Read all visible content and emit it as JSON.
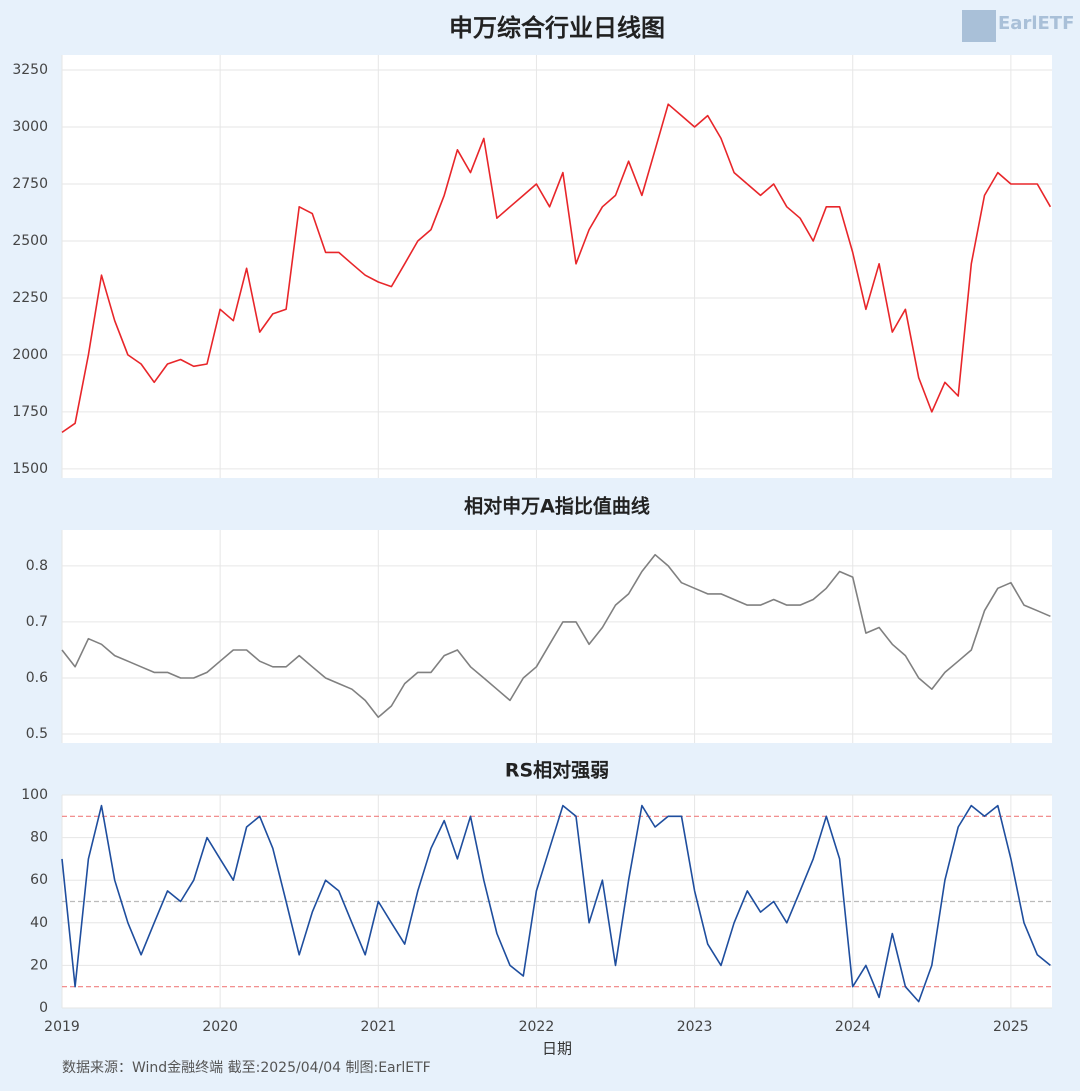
{
  "logo": "EarlETF",
  "source": "数据来源：Wind金融终端 截至:2025/04/04 制图:EarlETF",
  "chart_data": [
    {
      "type": "line",
      "title": "申万综合行业日线图",
      "x": [
        2019,
        2019.083,
        2019.167,
        2019.25,
        2019.333,
        2019.417,
        2019.5,
        2019.583,
        2019.667,
        2019.75,
        2019.833,
        2019.917,
        2020,
        2020.083,
        2020.167,
        2020.25,
        2020.333,
        2020.417,
        2020.5,
        2020.583,
        2020.667,
        2020.75,
        2020.833,
        2020.917,
        2021,
        2021.083,
        2021.167,
        2021.25,
        2021.333,
        2021.417,
        2021.5,
        2021.583,
        2021.667,
        2021.75,
        2021.833,
        2021.917,
        2022,
        2022.083,
        2022.167,
        2022.25,
        2022.333,
        2022.417,
        2022.5,
        2022.583,
        2022.667,
        2022.75,
        2022.833,
        2022.917,
        2023,
        2023.083,
        2023.167,
        2023.25,
        2023.333,
        2023.417,
        2023.5,
        2023.583,
        2023.667,
        2023.75,
        2023.833,
        2023.917,
        2024,
        2024.083,
        2024.167,
        2024.25,
        2024.333,
        2024.417,
        2024.5,
        2024.583,
        2024.667,
        2024.75,
        2024.833,
        2024.917,
        2025,
        2025.083,
        2025.167,
        2025.25
      ],
      "series": [
        {
          "name": "申万综合",
          "color": "#e8262a",
          "values": [
            1660,
            1700,
            2000,
            2350,
            2150,
            2000,
            1960,
            1880,
            1960,
            1980,
            1950,
            1960,
            2200,
            2150,
            2380,
            2100,
            2180,
            2200,
            2650,
            2620,
            2450,
            2450,
            2400,
            2350,
            2320,
            2300,
            2400,
            2500,
            2550,
            2700,
            2900,
            2800,
            2950,
            2600,
            2650,
            2700,
            2750,
            2650,
            2800,
            2400,
            2550,
            2650,
            2700,
            2850,
            2700,
            2900,
            3100,
            3050,
            3000,
            3050,
            2950,
            2800,
            2750,
            2700,
            2750,
            2650,
            2600,
            2500,
            2650,
            2650,
            2450,
            2200,
            2400,
            2100,
            2200,
            1900,
            1750,
            1880,
            1820,
            2400,
            2700,
            2800,
            2750,
            2750,
            2750,
            2650
          ]
        }
      ],
      "xlim": [
        2019,
        2025.26
      ],
      "xticks": [
        2019,
        2020,
        2021,
        2022,
        2023,
        2024,
        2025
      ],
      "ylim": [
        1460,
        3316
      ],
      "yticks": [
        1500,
        1750,
        2000,
        2250,
        2500,
        2750,
        3000,
        3250
      ],
      "grid": true
    },
    {
      "type": "line",
      "title": "相对申万A指比值曲线",
      "x": [
        2019,
        2019.083,
        2019.167,
        2019.25,
        2019.333,
        2019.417,
        2019.5,
        2019.583,
        2019.667,
        2019.75,
        2019.833,
        2019.917,
        2020,
        2020.083,
        2020.167,
        2020.25,
        2020.333,
        2020.417,
        2020.5,
        2020.583,
        2020.667,
        2020.75,
        2020.833,
        2020.917,
        2021,
        2021.083,
        2021.167,
        2021.25,
        2021.333,
        2021.417,
        2021.5,
        2021.583,
        2021.667,
        2021.75,
        2021.833,
        2021.917,
        2022,
        2022.083,
        2022.167,
        2022.25,
        2022.333,
        2022.417,
        2022.5,
        2022.583,
        2022.667,
        2022.75,
        2022.833,
        2022.917,
        2023,
        2023.083,
        2023.167,
        2023.25,
        2023.333,
        2023.417,
        2023.5,
        2023.583,
        2023.667,
        2023.75,
        2023.833,
        2023.917,
        2024,
        2024.083,
        2024.167,
        2024.25,
        2024.333,
        2024.417,
        2024.5,
        2024.583,
        2024.667,
        2024.75,
        2024.833,
        2024.917,
        2025,
        2025.083,
        2025.167,
        2025.25
      ],
      "series": [
        {
          "name": "比值",
          "color": "#808080",
          "values": [
            0.65,
            0.62,
            0.67,
            0.66,
            0.64,
            0.63,
            0.62,
            0.61,
            0.61,
            0.6,
            0.6,
            0.61,
            0.63,
            0.65,
            0.65,
            0.63,
            0.62,
            0.62,
            0.64,
            0.62,
            0.6,
            0.59,
            0.58,
            0.56,
            0.53,
            0.55,
            0.59,
            0.61,
            0.61,
            0.64,
            0.65,
            0.62,
            0.6,
            0.58,
            0.56,
            0.6,
            0.62,
            0.66,
            0.7,
            0.7,
            0.66,
            0.69,
            0.73,
            0.75,
            0.79,
            0.82,
            0.8,
            0.77,
            0.76,
            0.75,
            0.75,
            0.74,
            0.73,
            0.73,
            0.74,
            0.73,
            0.73,
            0.74,
            0.76,
            0.79,
            0.78,
            0.68,
            0.69,
            0.66,
            0.64,
            0.6,
            0.58,
            0.61,
            0.63,
            0.65,
            0.72,
            0.76,
            0.77,
            0.73,
            0.72,
            0.71
          ]
        }
      ],
      "xlim": [
        2019,
        2025.26
      ],
      "xticks": [
        2019,
        2020,
        2021,
        2022,
        2023,
        2024,
        2025
      ],
      "ylim": [
        0.484,
        0.864
      ],
      "yticks": [
        0.5,
        0.6,
        0.7,
        0.8
      ],
      "grid": true
    },
    {
      "type": "line",
      "title": "RS相对强弱",
      "xlabel": "日期",
      "x": [
        2019,
        2019.083,
        2019.167,
        2019.25,
        2019.333,
        2019.417,
        2019.5,
        2019.583,
        2019.667,
        2019.75,
        2019.833,
        2019.917,
        2020,
        2020.083,
        2020.167,
        2020.25,
        2020.333,
        2020.417,
        2020.5,
        2020.583,
        2020.667,
        2020.75,
        2020.833,
        2020.917,
        2021,
        2021.083,
        2021.167,
        2021.25,
        2021.333,
        2021.417,
        2021.5,
        2021.583,
        2021.667,
        2021.75,
        2021.833,
        2021.917,
        2022,
        2022.083,
        2022.167,
        2022.25,
        2022.333,
        2022.417,
        2022.5,
        2022.583,
        2022.667,
        2022.75,
        2022.833,
        2022.917,
        2023,
        2023.083,
        2023.167,
        2023.25,
        2023.333,
        2023.417,
        2023.5,
        2023.583,
        2023.667,
        2023.75,
        2023.833,
        2023.917,
        2024,
        2024.083,
        2024.167,
        2024.25,
        2024.333,
        2024.417,
        2024.5,
        2024.583,
        2024.667,
        2024.75,
        2024.833,
        2024.917,
        2025,
        2025.083,
        2025.167,
        2025.25
      ],
      "series": [
        {
          "name": "RS",
          "color": "#1f4e9e",
          "values": [
            70,
            10,
            70,
            95,
            60,
            40,
            25,
            40,
            55,
            50,
            60,
            80,
            70,
            60,
            85,
            90,
            75,
            50,
            25,
            45,
            60,
            55,
            40,
            25,
            50,
            40,
            30,
            55,
            75,
            88,
            70,
            90,
            60,
            35,
            20,
            15,
            55,
            75,
            95,
            90,
            40,
            60,
            20,
            60,
            95,
            85,
            90,
            90,
            55,
            30,
            20,
            40,
            55,
            45,
            50,
            40,
            55,
            70,
            90,
            70,
            10,
            20,
            5,
            35,
            10,
            3,
            20,
            60,
            85,
            95,
            90,
            95,
            70,
            40,
            25,
            20
          ]
        }
      ],
      "reference_lines": [
        {
          "value": 90,
          "color": "#f08080"
        },
        {
          "value": 50,
          "color": "#bbbbbb"
        },
        {
          "value": 10,
          "color": "#f08080"
        }
      ],
      "xlim": [
        2019,
        2025.26
      ],
      "xticks": [
        2019,
        2020,
        2021,
        2022,
        2023,
        2024,
        2025
      ],
      "ylim": [
        0,
        100
      ],
      "yticks": [
        0,
        20,
        40,
        60,
        80,
        100
      ],
      "grid": true
    }
  ]
}
